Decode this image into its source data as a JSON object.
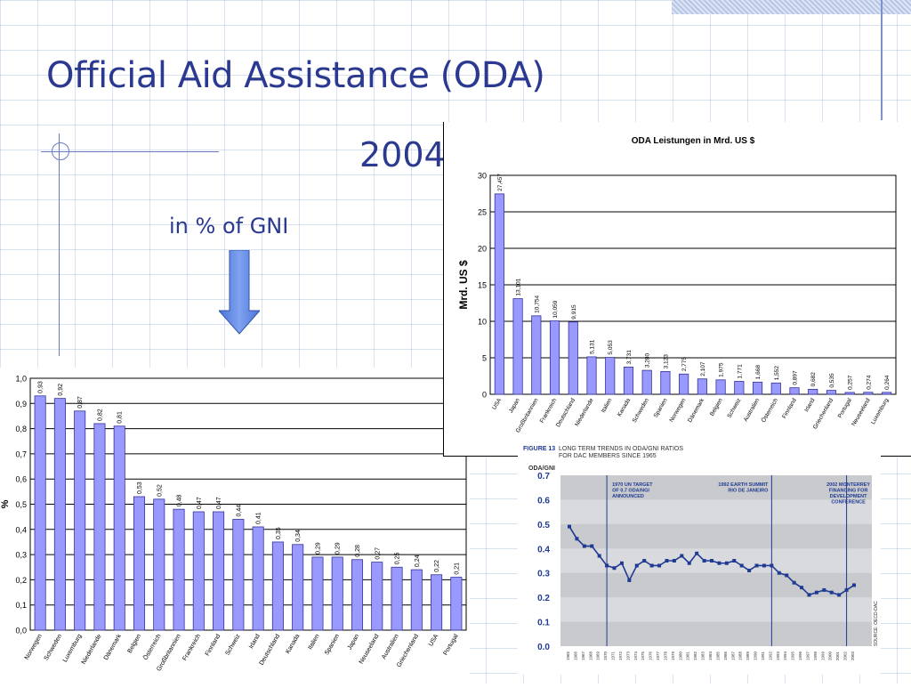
{
  "slide": {
    "title": "Official Aid Assistance (ODA)",
    "year": "2004",
    "gni_label": "in % of GNI",
    "arrow_icon": "arrow-down-icon",
    "accent_color": "#2b3990"
  },
  "chart_data": [
    {
      "id": "gni",
      "type": "bar",
      "ylabel": "%",
      "ylim": [
        0,
        1.0
      ],
      "yticks": [
        "0,0",
        "0,1",
        "0,2",
        "0,3",
        "0,4",
        "0,5",
        "0,6",
        "0,7",
        "0,8",
        "0,9",
        "1,0"
      ],
      "categories": [
        "Norwegen",
        "Schweden",
        "Luxemburg",
        "Niederlande",
        "Dänemark",
        "Belgien",
        "Österreich",
        "Großbritannien",
        "Frankreich",
        "Finnland",
        "Schweiz",
        "Irland",
        "Deutschland",
        "Kanada",
        "Italien",
        "Spanien",
        "Japan",
        "Neuseeland",
        "Australien",
        "Griechenland",
        "USA",
        "Portugal"
      ],
      "values": [
        0.93,
        0.92,
        0.87,
        0.82,
        0.81,
        0.53,
        0.52,
        0.48,
        0.47,
        0.47,
        0.44,
        0.41,
        0.35,
        0.34,
        0.29,
        0.29,
        0.28,
        0.27,
        0.25,
        0.24,
        0.22,
        0.21
      ],
      "value_labels": [
        "0,93",
        "0,92",
        "0,87",
        "0,82",
        "0,81",
        "0,53",
        "0,52",
        "0,48",
        "0,47",
        "0,47",
        "0,44",
        "0,41",
        "0,35",
        "0,34",
        "0,29",
        "0,29",
        "0,28",
        "0,27",
        "0,25",
        "0,24",
        "0,22",
        "0,21"
      ],
      "bar_color": "#9999ff"
    },
    {
      "id": "oda",
      "type": "bar",
      "title": "ODA Leistungen in Mrd. US $",
      "ylabel": "Mrd. US $",
      "ylim": [
        0,
        30
      ],
      "yticks": [
        "0",
        "5",
        "10",
        "15",
        "20",
        "25",
        "30"
      ],
      "categories": [
        "USA",
        "Japan",
        "Großbritannien",
        "Frankreich",
        "Deutschland",
        "Niederlande",
        "Italien",
        "Kanada",
        "Schweden",
        "Spanien",
        "Norwegen",
        "Dänemark",
        "Belgien",
        "Schweiz",
        "Australien",
        "Österreich",
        "Finnland",
        "Irland",
        "Griechenland",
        "Portugal",
        "Neuseeland",
        "Luxemburg"
      ],
      "values": [
        27.457,
        13.101,
        10.754,
        10.059,
        9.915,
        5.131,
        5.053,
        3.731,
        3.28,
        3.123,
        2.775,
        2.107,
        1.975,
        1.771,
        1.668,
        1.552,
        0.897,
        0.682,
        0.535,
        0.257,
        0.274,
        0.264
      ],
      "value_labels": [
        "27,457",
        "13,101",
        "10,754",
        "10,059",
        "9,915",
        "5,131",
        "5,053",
        "3,731",
        "3,280",
        "3,123",
        "2,775",
        "2,107",
        "1,975",
        "1,771",
        "1,668",
        "1,552",
        "0,897",
        "0,682",
        "0,535",
        "0,257",
        "0,274",
        "0,264"
      ],
      "bar_color": "#9999ff"
    },
    {
      "id": "trend",
      "type": "line",
      "figure_label": "FIGURE 13",
      "title_lines": [
        "LONG TERM TRENDS IN ODA/GNI RATIOS",
        "FOR DAC MEMBERS SINCE 1965"
      ],
      "ylabel": "ODA/GNI",
      "ylim": [
        0,
        0.7
      ],
      "yticks": [
        "0.0",
        "0.1",
        "0.2",
        "0.3",
        "0.4",
        "0.5",
        "0.6",
        "0.7"
      ],
      "source": "SOURCE: OECD-DAC",
      "x": [
        1965,
        1966,
        1967,
        1968,
        1969,
        1970,
        1971,
        1972,
        1973,
        1974,
        1975,
        1976,
        1977,
        1978,
        1979,
        1980,
        1981,
        1982,
        1983,
        1984,
        1985,
        1986,
        1987,
        1988,
        1989,
        1990,
        1991,
        1992,
        1993,
        1994,
        1995,
        1996,
        1997,
        1998,
        1999,
        2000,
        2001,
        2002,
        2003
      ],
      "values": [
        0.49,
        0.44,
        0.41,
        0.41,
        0.37,
        0.33,
        0.32,
        0.34,
        0.27,
        0.33,
        0.35,
        0.33,
        0.33,
        0.35,
        0.35,
        0.37,
        0.34,
        0.38,
        0.35,
        0.35,
        0.34,
        0.34,
        0.35,
        0.33,
        0.31,
        0.33,
        0.33,
        0.33,
        0.3,
        0.29,
        0.26,
        0.24,
        0.21,
        0.22,
        0.23,
        0.22,
        0.21,
        0.23,
        0.25
      ],
      "annotations": [
        {
          "year": 1970,
          "lines": [
            "1970 UN TARGET",
            "OF 0.7 ODA/NGI",
            "ANNOUNCED"
          ]
        },
        {
          "year": 1992,
          "lines": [
            "1992 EARTH SUMMIT",
            "RIO DE JANEIRO"
          ]
        },
        {
          "year": 2002,
          "lines": [
            "2002 MONTERREY",
            "FINANCING FOR",
            "DEVELOPMENT",
            "CONFERENCE"
          ]
        }
      ],
      "line_color": "#1f3a93"
    }
  ]
}
